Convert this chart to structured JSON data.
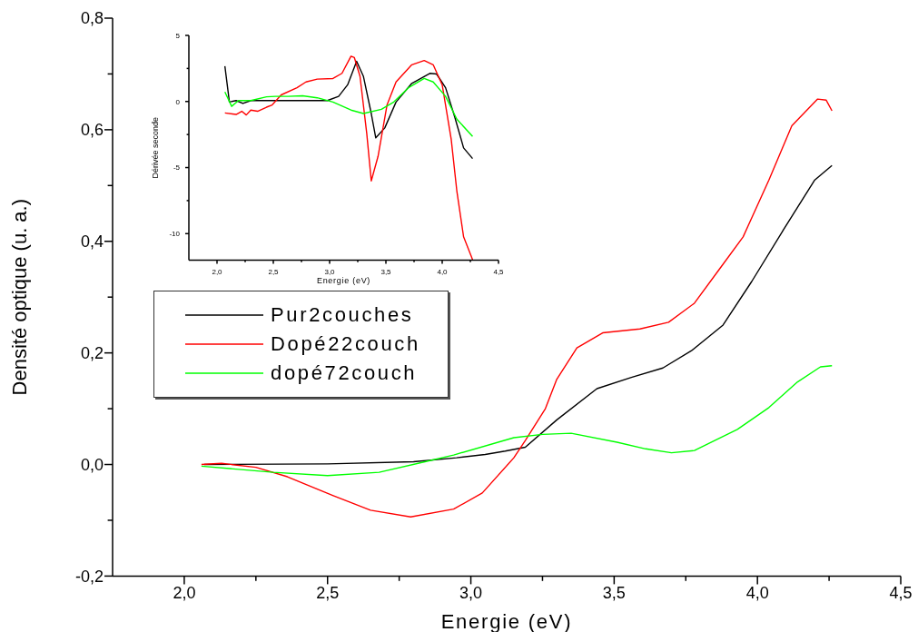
{
  "chart_data": [
    {
      "type": "line",
      "xlabel": "Energie (eV)",
      "ylabel": "Densité optique (u. a.)",
      "xlim": [
        1.75,
        4.5
      ],
      "xticks": [
        {
          "value": 2,
          "label": "2,0"
        },
        {
          "value": 2.25,
          "label": null
        },
        {
          "value": 2.5,
          "label": "2,5"
        },
        {
          "value": 2.75,
          "label": null
        },
        {
          "value": 3,
          "label": "3,0"
        },
        {
          "value": 3.25,
          "label": null
        },
        {
          "value": 3.5,
          "label": "3,5"
        },
        {
          "value": 3.75,
          "label": null
        },
        {
          "value": 4,
          "label": "4,0"
        },
        {
          "value": 4.25,
          "label": null
        },
        {
          "value": 4.5,
          "label": "4,5"
        }
      ],
      "ylim": [
        -0.2,
        0.8
      ],
      "yticks": [
        {
          "value": -0.2,
          "label": "-0,2"
        },
        {
          "value": -0.1,
          "label": null
        },
        {
          "value": 0,
          "label": "0,0"
        },
        {
          "value": 0.1,
          "label": null
        },
        {
          "value": 0.2,
          "label": "0,2"
        },
        {
          "value": 0.3,
          "label": null
        },
        {
          "value": 0.4,
          "label": "0,4"
        },
        {
          "value": 0.5,
          "label": null
        },
        {
          "value": 0.6,
          "label": "0,6"
        },
        {
          "value": 0.7,
          "label": null
        },
        {
          "value": 0.8,
          "label": "0,8"
        }
      ],
      "grid": false,
      "legend": "left",
      "marker": "none",
      "line_style": "solid",
      "series": [
        {
          "name": "Pur2couches",
          "color": "#000000",
          "x": [
            2.07,
            2.5,
            2.8,
            2.95,
            3.05,
            3.12,
            3.19,
            3.3,
            3.44,
            3.56,
            3.67,
            3.77,
            3.88,
            3.98,
            4.09,
            4.2,
            4.26
          ],
          "values": [
            0,
            0.001,
            0.005,
            0.012,
            0.018,
            0.024,
            0.031,
            0.08,
            0.136,
            0.156,
            0.173,
            0.204,
            0.25,
            0.328,
            0.42,
            0.51,
            0.536
          ]
        },
        {
          "name": "Dopé22couch",
          "color": "#ff0000",
          "x": [
            2.06,
            2.13,
            2.25,
            2.36,
            2.52,
            2.65,
            2.79,
            2.94,
            3.04,
            3.15,
            3.19,
            3.26,
            3.3,
            3.37,
            3.46,
            3.59,
            3.69,
            3.78,
            3.87,
            3.95,
            4.04,
            4.12,
            4.21,
            4.24,
            4.26
          ],
          "values": [
            0,
            0.002,
            -0.005,
            -0.022,
            -0.056,
            -0.082,
            -0.094,
            -0.08,
            -0.051,
            0.012,
            0.043,
            0.1,
            0.153,
            0.209,
            0.236,
            0.243,
            0.255,
            0.289,
            0.352,
            0.408,
            0.51,
            0.607,
            0.655,
            0.653,
            0.634
          ]
        },
        {
          "name": "dopé72couch",
          "color": "#00ff00",
          "x": [
            2.06,
            2.31,
            2.5,
            2.68,
            2.84,
            2.94,
            3.15,
            3.25,
            3.35,
            3.51,
            3.61,
            3.7,
            3.78,
            3.93,
            4.04,
            4.14,
            4.22,
            4.26
          ],
          "values": [
            -0.003,
            -0.014,
            -0.02,
            -0.014,
            0.005,
            0.017,
            0.048,
            0.054,
            0.056,
            0.04,
            0.028,
            0.021,
            0.025,
            0.063,
            0.102,
            0.148,
            0.175,
            0.177
          ]
        }
      ]
    },
    {
      "type": "line",
      "xlabel": "Energie (eV)",
      "ylabel": "Dérivée seconde",
      "xlim": [
        1.75,
        4.5
      ],
      "xticks": [
        {
          "value": 2,
          "label": "2,0"
        },
        {
          "value": 2.25,
          "label": null
        },
        {
          "value": 2.5,
          "label": "2,5"
        },
        {
          "value": 2.75,
          "label": null
        },
        {
          "value": 3,
          "label": "3,0"
        },
        {
          "value": 3.25,
          "label": null
        },
        {
          "value": 3.5,
          "label": "3,5"
        },
        {
          "value": 3.75,
          "label": null
        },
        {
          "value": 4,
          "label": "4,0"
        },
        {
          "value": 4.25,
          "label": null
        },
        {
          "value": 4.5,
          "label": "4,5"
        }
      ],
      "ylim": [
        -12,
        5
      ],
      "yticks": [
        {
          "value": -10,
          "label": "-10"
        },
        {
          "value": -7.5,
          "label": null
        },
        {
          "value": -5,
          "label": "-5"
        },
        {
          "value": -2.5,
          "label": null
        },
        {
          "value": 0,
          "label": "0"
        },
        {
          "value": 2.5,
          "label": null
        },
        {
          "value": 5,
          "label": "5"
        }
      ],
      "grid": false,
      "legend": false,
      "marker": "none",
      "line_style": "solid",
      "series": [
        {
          "color": "#000000",
          "x": [
            2.07,
            2.11,
            2.17,
            2.23,
            2.3,
            2.71,
            2.98,
            3.08,
            3.16,
            3.24,
            3.3,
            3.37,
            3.41,
            3.49,
            3.59,
            3.73,
            3.89,
            3.95,
            4.03,
            4.11,
            4.19,
            4.27
          ],
          "values": [
            2.67,
            -0.04,
            0.07,
            -0.15,
            0.07,
            0.07,
            0.07,
            0.39,
            1.26,
            3.04,
            1.91,
            -0.91,
            -2.75,
            -2,
            -0.04,
            1.37,
            2.13,
            2.08,
            1.04,
            -1.13,
            -3.51,
            -4.32
          ]
        },
        {
          "color": "#ff0000",
          "x": [
            2.07,
            2.17,
            2.22,
            2.26,
            2.3,
            2.36,
            2.44,
            2.49,
            2.57,
            2.71,
            2.79,
            2.89,
            3.03,
            3.11,
            3.19,
            3.22,
            3.27,
            3.33,
            3.37,
            3.43,
            3.51,
            3.59,
            3.73,
            3.84,
            3.92,
            4,
            4.08,
            4.13,
            4.19,
            4.27
          ],
          "values": [
            -0.87,
            -0.98,
            -0.74,
            -1.02,
            -0.65,
            -0.74,
            -0.43,
            -0.26,
            0.5,
            1.04,
            1.48,
            1.69,
            1.74,
            2.13,
            3.43,
            3.32,
            1.91,
            -2.43,
            -6.01,
            -4.16,
            -0.26,
            1.48,
            2.78,
            3.1,
            2.78,
            1.26,
            -2.86,
            -6.77,
            -10.24,
            -11.97
          ]
        },
        {
          "color": "#00ff00",
          "x": [
            2.07,
            2.13,
            2.19,
            2.3,
            2.44,
            2.52,
            2.63,
            2.76,
            2.89,
            3.03,
            3.19,
            3.3,
            3.46,
            3.57,
            3.7,
            3.84,
            3.92,
            4.03,
            4.13,
            4.27
          ],
          "values": [
            0.72,
            -0.37,
            0.07,
            0.07,
            0.35,
            0.39,
            0.39,
            0.43,
            0.28,
            -0.04,
            -0.65,
            -0.91,
            -0.59,
            -0.04,
            1.04,
            1.74,
            1.48,
            0.39,
            -1.34,
            -2.65
          ]
        }
      ]
    }
  ]
}
